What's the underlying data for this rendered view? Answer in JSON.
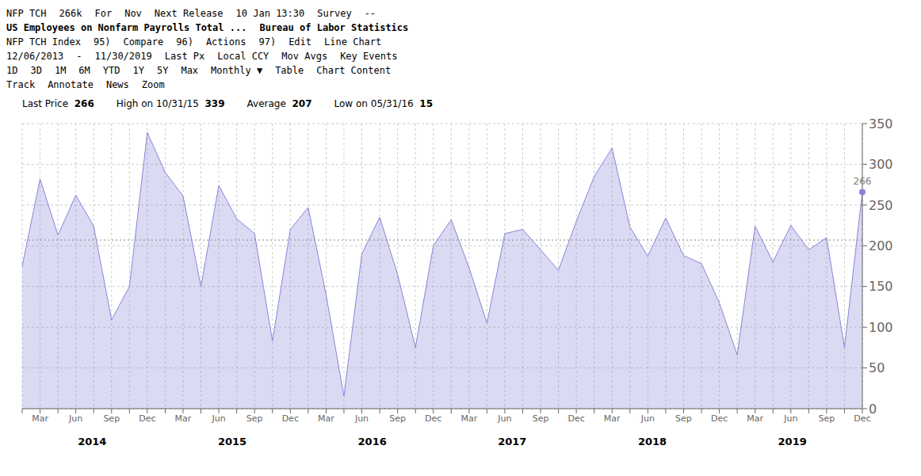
{
  "chart_data": {
    "type": "area",
    "title": "US Employees on Nonfarm Payrolls Total ...",
    "subtitle": "Bureau of Labor Statistics",
    "annotations": [
      [
        "NFP TCH",
        "266k",
        "For",
        "Nov",
        "Next Release",
        "10 Jan 13:30",
        "Survey",
        "--"
      ],
      [
        "NFP TCH Index",
        "95)",
        "Compare",
        "96)",
        "Actions",
        "97)",
        "Edit",
        "Line Chart"
      ],
      [
        "12/06/2013",
        "-",
        "11/30/2019",
        "Last Px",
        "Local CCY",
        "Mov Avgs",
        "Key Events"
      ],
      [
        "1D",
        "3D",
        "1M",
        "6M",
        "YTD",
        "1Y",
        "5Y",
        "Max",
        "Monthly ▼",
        "Table",
        "Chart Content"
      ],
      [
        "Track",
        "Annotate",
        "News",
        "Zoom"
      ]
    ],
    "categories": [
      null,
      "Mar",
      null,
      "Jun",
      null,
      "Sep",
      null,
      "Dec",
      null,
      "Mar",
      null,
      "Jun",
      null,
      "Sep",
      null,
      "Dec",
      null,
      "Mar",
      null,
      "Jun",
      null,
      "Sep",
      null,
      "Dec",
      null,
      "Mar",
      null,
      "Jun",
      null,
      "Sep",
      null,
      "Dec",
      null,
      "Mar",
      null,
      "Jun",
      null,
      "Sep",
      null,
      "Dec",
      null,
      "Mar",
      null,
      "Jun",
      null,
      "Sep",
      null,
      "Dec"
    ],
    "x_groups": [
      "2014",
      "2015",
      "2016",
      "2017",
      "2018",
      "2019"
    ],
    "series": [
      {
        "name": "Last Price",
        "color": "#8884d8",
        "values": [
          175,
          282,
          213,
          262,
          224,
          109,
          150,
          339,
          290,
          261,
          150,
          274,
          233,
          215,
          83,
          220,
          247,
          140,
          15,
          190,
          235,
          165,
          75,
          200,
          232,
          173,
          105,
          215,
          220,
          195,
          170,
          230,
          285,
          320,
          223,
          187,
          234,
          188,
          178,
          130,
          66,
          224,
          180,
          225,
          195,
          210,
          75,
          266
        ]
      }
    ],
    "last_value": 266,
    "high": {
      "label": "High on 10/31/15",
      "value": 339
    },
    "average": {
      "label": "Average",
      "value": 207,
      "color": "#888888"
    },
    "low": {
      "label": "Low on 05/31/16",
      "value": 15
    },
    "ylim": [
      0,
      350
    ],
    "yticks": [
      0,
      50,
      100,
      150,
      200,
      250,
      300,
      350
    ],
    "grid": true
  }
}
